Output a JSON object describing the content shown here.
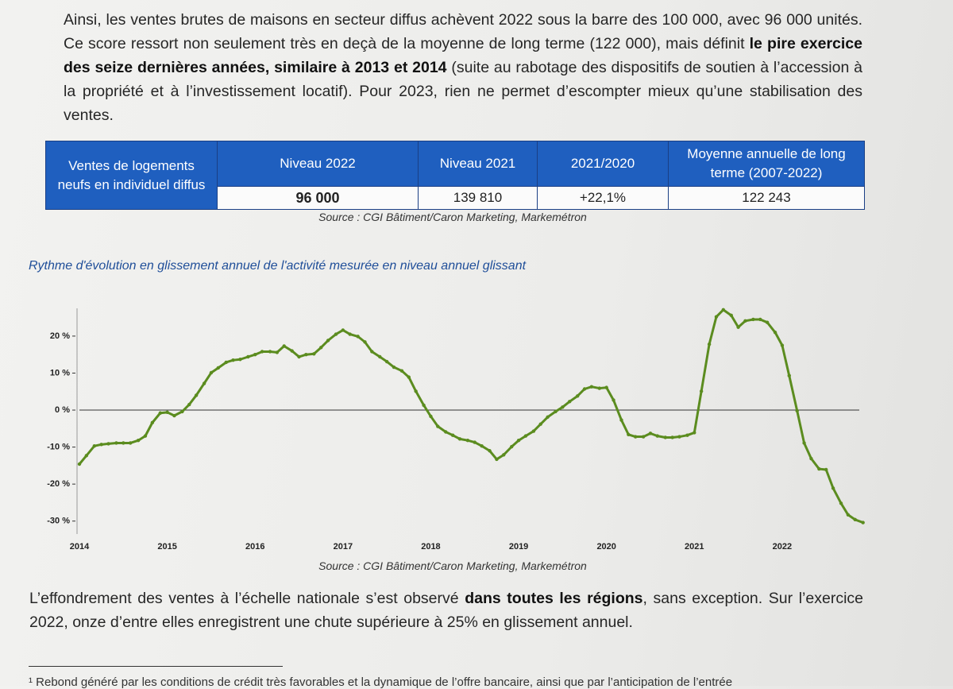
{
  "intro": {
    "before": "Ainsi, les ventes brutes de maisons en secteur diffus achèvent 2022 sous la barre des 100 000, avec 96 000 unités. Ce score ressort non seulement très en deçà de la moyenne de long terme (122 000), mais définit ",
    "emphasis": "le pire exercice des seize dernières années, similaire à 2013 et 2014",
    "after": " (suite au rabotage des dispositifs de soutien à l’accession à la propriété et à l’investissement locatif). Pour 2023, rien ne permet d’escompter mieux qu’une stabilisation des ventes."
  },
  "table": {
    "row_header": "Ventes de logements neufs en individuel diffus",
    "columns": [
      "Niveau 2022",
      "Niveau 2021",
      "2021/2020",
      "Moyenne annuelle de long terme (2007-2022)"
    ],
    "values": [
      "96 000",
      "139 810",
      "+22,1%",
      "122 243"
    ]
  },
  "table_source": "Source : CGI Bâtiment/Caron Marketing, Markemétron",
  "chart_data": {
    "type": "line",
    "title": "Rythme d'évolution en glissement annuel de l'activité mesurée en niveau annuel glissant",
    "x": [
      2014,
      2014.08,
      2014.17,
      2014.25,
      2014.33,
      2014.42,
      2014.5,
      2014.58,
      2014.67,
      2014.75,
      2014.83,
      2014.92,
      2015,
      2015.08,
      2015.17,
      2015.25,
      2015.33,
      2015.42,
      2015.5,
      2015.58,
      2015.67,
      2015.75,
      2015.83,
      2015.92,
      2016,
      2016.08,
      2016.17,
      2016.25,
      2016.33,
      2016.42,
      2016.5,
      2016.58,
      2016.67,
      2016.75,
      2016.83,
      2016.92,
      2017,
      2017.08,
      2017.17,
      2017.25,
      2017.33,
      2017.42,
      2017.5,
      2017.58,
      2017.67,
      2017.75,
      2017.83,
      2017.92,
      2018,
      2018.08,
      2018.17,
      2018.25,
      2018.33,
      2018.42,
      2018.5,
      2018.58,
      2018.67,
      2018.75,
      2018.83,
      2018.92,
      2019,
      2019.08,
      2019.17,
      2019.25,
      2019.33,
      2019.42,
      2019.5,
      2019.58,
      2019.67,
      2019.75,
      2019.83,
      2019.92,
      2020,
      2020.08,
      2020.17,
      2020.25,
      2020.33,
      2020.42,
      2020.5,
      2020.58,
      2020.67,
      2020.75,
      2020.83,
      2020.92,
      2021,
      2021.08,
      2021.17,
      2021.25,
      2021.33,
      2021.42,
      2021.5,
      2021.58,
      2021.67,
      2021.75,
      2021.83,
      2021.92,
      2022,
      2022.08,
      2022.17,
      2022.25,
      2022.33,
      2022.42,
      2022.5,
      2022.58,
      2022.67,
      2022.75,
      2022.83,
      2022.92
    ],
    "series": [
      {
        "color": "#5b8c1f",
        "values": [
          -14.6,
          -12.3,
          -9.7,
          -9.3,
          -9.1,
          -8.9,
          -8.9,
          -8.9,
          -8.2,
          -7,
          -3.4,
          -0.8,
          -0.6,
          -1.5,
          -0.4,
          1.5,
          4,
          7.2,
          10.1,
          11.4,
          12.9,
          13.5,
          13.7,
          14.4,
          15,
          15.8,
          15.8,
          15.6,
          17.3,
          16,
          14.4,
          15,
          15.2,
          16.9,
          18.8,
          20.5,
          21.6,
          20.5,
          19.9,
          18.4,
          15.8,
          14.4,
          13.1,
          11.6,
          10.6,
          8.9,
          5.1,
          1.3,
          -1.7,
          -4.4,
          -5.9,
          -6.8,
          -7.8,
          -8.2,
          -8.7,
          -9.7,
          -11,
          -13.3,
          -12.1,
          -9.9,
          -8.2,
          -7,
          -5.7,
          -3.8,
          -1.9,
          -0.4,
          0.8,
          2.3,
          3.8,
          5.7,
          6.3,
          5.9,
          6.1,
          2.7,
          -2.7,
          -6.6,
          -7.2,
          -7.2,
          -6.3,
          -7,
          -7.4,
          -7.4,
          -7.2,
          -6.8,
          -6.1,
          5.1,
          17.8,
          25.2,
          27.1,
          25.6,
          22.4,
          24.1,
          24.5,
          24.5,
          23.7,
          21,
          17.5,
          9.3,
          -0.2,
          -8.9,
          -13.1,
          -15.9,
          -16.1,
          -21.1,
          -25.2,
          -28.3,
          -29.6,
          -30.4
        ]
      }
    ],
    "xlim": [
      2014,
      2022.95
    ],
    "xticks": [
      2014,
      2015,
      2016,
      2017,
      2018,
      2019,
      2020,
      2021,
      2022
    ],
    "ylim": [
      -33.5,
      27.5
    ],
    "yticks": [
      {
        "value": -30,
        "label": "-30 %"
      },
      {
        "value": -20,
        "label": "-20 %"
      },
      {
        "value": -10,
        "label": "-10 %"
      },
      {
        "value": 0,
        "label": "0 %"
      },
      {
        "value": 10,
        "label": "10 %"
      },
      {
        "value": 20,
        "label": "20 %"
      }
    ],
    "zero_line": true
  },
  "chart_source": "Source : CGI Bâtiment/Caron Marketing, Markemétron",
  "outro": {
    "before": "L’effondrement des ventes à l’échelle nationale s’est observé ",
    "emphasis": "dans toutes les régions",
    "after": ", sans exception. Sur l’exercice 2022, onze d’entre elles enregistrent une chute supérieure à 25% en glissement annuel."
  },
  "footnote": "¹ Rebond généré par les conditions de crédit très favorables et la dynamique de l’offre bancaire, ainsi que par l’anticipation de l’entrée"
}
